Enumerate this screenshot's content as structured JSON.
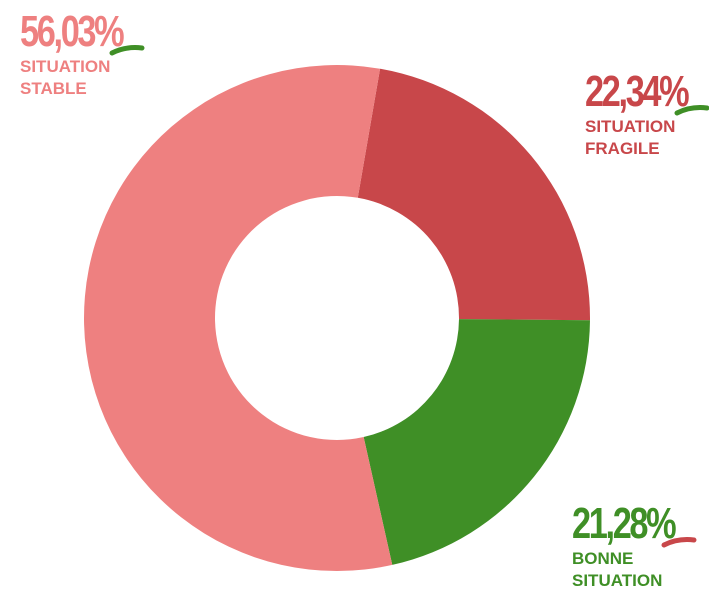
{
  "chart_data": {
    "type": "donut",
    "categories": [
      "SITUATION FRAGILE",
      "BONNE SITUATION",
      "SITUATION STABLE"
    ],
    "values": [
      22.34,
      21.28,
      56.03
    ],
    "value_labels": [
      "22,34%",
      "21,28%",
      "56,03%"
    ],
    "colors": [
      "#c8474a",
      "#3f8f26",
      "#ee8080"
    ]
  }
}
